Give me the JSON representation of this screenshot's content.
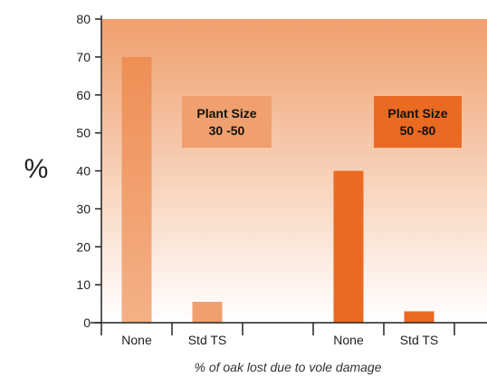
{
  "chart_data": {
    "type": "bar",
    "title": "",
    "ylabel": "%",
    "xlabel": "% of oak lost due to vole damage",
    "ylim": [
      0,
      80
    ],
    "yticks": [
      0,
      10,
      20,
      30,
      40,
      50,
      60,
      70,
      80
    ],
    "categories": [
      "None",
      "Std TS",
      "None",
      "Std TS"
    ],
    "values": [
      70,
      5.5,
      40,
      3
    ],
    "groups": [
      {
        "label_lines": [
          "Plant Size",
          "30 -50"
        ],
        "categories": [
          0,
          1
        ],
        "color": "#f0a06e",
        "label_color": "#f0a06e"
      },
      {
        "label_lines": [
          "Plant Size",
          "50 -80"
        ],
        "categories": [
          2,
          3
        ],
        "color": "#ea6a22",
        "label_color": "#ea6a22"
      }
    ],
    "colors": {
      "background_top": "#f0a06e",
      "background_bottom": "#ffffff",
      "axis": "#222222"
    }
  }
}
